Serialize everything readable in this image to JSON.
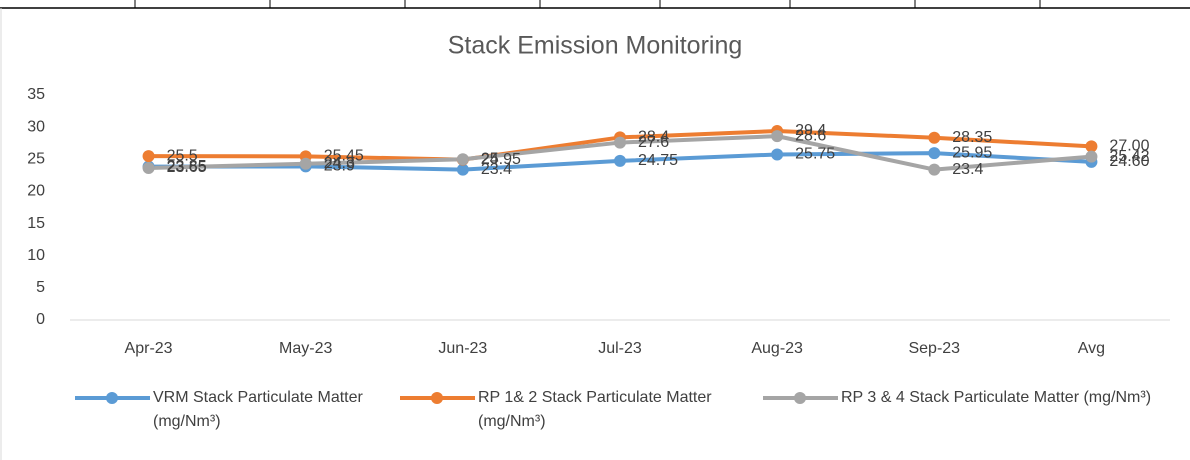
{
  "chart_data": {
    "type": "line",
    "title": "Stack Emission Monitoring",
    "categories": [
      "Apr-23",
      "May-23",
      "Jun-23",
      "Jul-23",
      "Aug-23",
      "Sep-23",
      "Avg"
    ],
    "series": [
      {
        "name": "VRM Stack Particulate Matter (mg/Nm³)",
        "color": "#5b9bd5",
        "values": [
          23.85,
          23.9,
          23.4,
          24.75,
          25.75,
          25.95,
          24.6
        ],
        "value_labels": [
          "23.85",
          "23.9",
          "23.4",
          "24.75",
          "25.75",
          "25.95",
          "24.60"
        ]
      },
      {
        "name": "RP 1& 2 Stack Particulate Matter (mg/Nm³)",
        "color": "#ed7d31",
        "values": [
          25.5,
          25.45,
          24.95,
          28.4,
          29.4,
          28.35,
          27
        ],
        "value_labels": [
          "25.5",
          "25.45",
          "24.95",
          "28.4",
          "29.4",
          "28.35",
          "27.00"
        ]
      },
      {
        "name": "RP 3 & 4 Stack Particulate Matter (mg/Nm³)",
        "color": "#a5a5a5",
        "values": [
          23.65,
          24.3,
          25,
          27.6,
          28.6,
          23.4,
          25.42
        ],
        "value_labels": [
          "23.65",
          "24.3",
          "25",
          "27.6",
          "28.6",
          "23.4",
          "25.42"
        ]
      }
    ],
    "ylim": [
      0,
      35
    ],
    "yticks": [
      0,
      5,
      10,
      15,
      20,
      25,
      30,
      35
    ],
    "grid": false,
    "legend": "bottom"
  }
}
